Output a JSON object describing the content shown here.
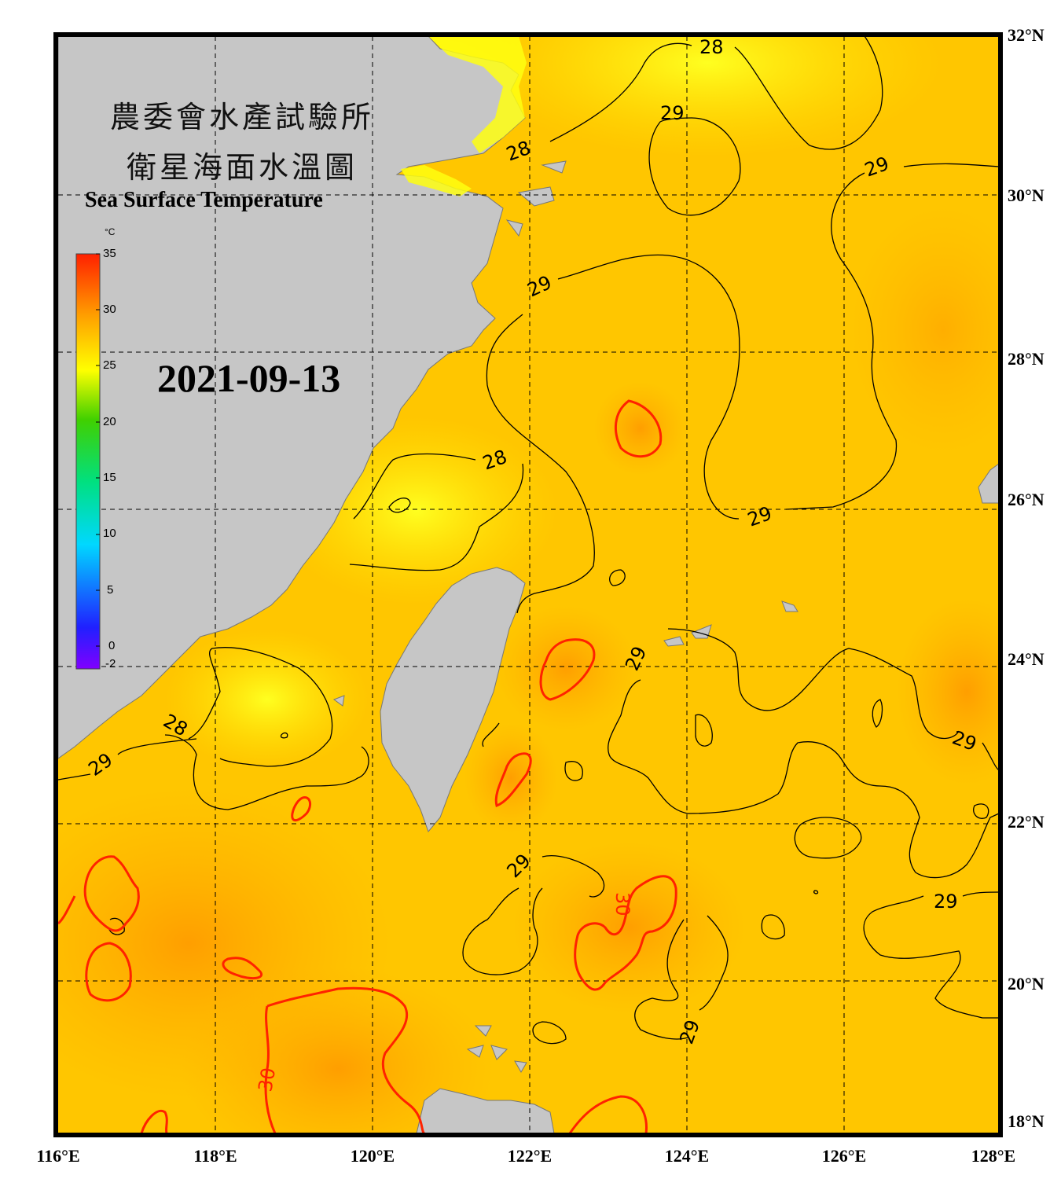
{
  "title_zh_line1": "農委會水產試驗所",
  "title_zh_line2": "衛星海面水溫圖",
  "title_en": "Sea Surface Temperature",
  "date": "2021-09-13",
  "colorbar": {
    "unit": "°C",
    "ticks": [
      "35",
      "30",
      "25",
      "20",
      "15",
      "10",
      "5",
      "0",
      "-2"
    ],
    "range": [
      -2,
      35
    ]
  },
  "axes": {
    "lon_labels": [
      "116°E",
      "118°E",
      "120°E",
      "122°E",
      "124°E",
      "126°E",
      "128°E"
    ],
    "lat_labels": [
      "32°N",
      "30°N",
      "28°N",
      "26°N",
      "24°N",
      "22°N",
      "20°N",
      "18°N"
    ],
    "lon_range": [
      116,
      128
    ],
    "lat_range": [
      18,
      32
    ]
  },
  "contour_labels": {
    "c28_a": "28",
    "c28_b": "28",
    "c28_c": "28",
    "c28_d": "28",
    "c29_a": "29",
    "c29_b": "29",
    "c29_c": "29",
    "c29_d": "29",
    "c29_e": "29",
    "c29_f": "29",
    "c29_g": "29",
    "c29_h": "29",
    "c29_i": "29",
    "c29_j": "29",
    "c30_a": "30",
    "c30_b": "30"
  },
  "colors": {
    "land": "#c6c6c6",
    "sea_base": "#ffc400",
    "contour_30": "#ff2200",
    "contour_other": "#000000"
  }
}
